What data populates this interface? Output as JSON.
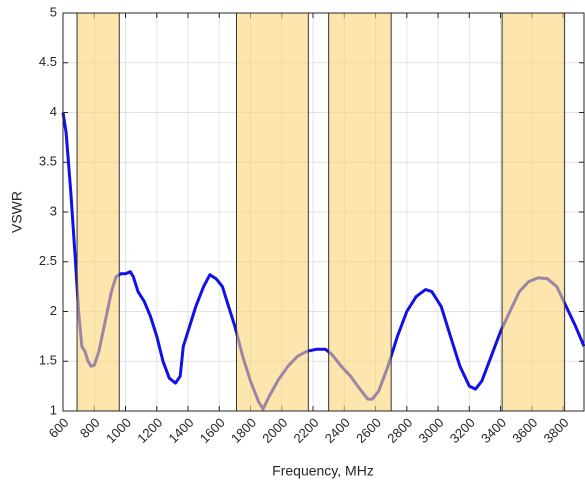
{
  "chart_data": {
    "type": "line",
    "xlabel": "Frequency, MHz",
    "ylabel": "VSWR",
    "x": [
      600,
      620,
      650,
      680,
      700,
      720,
      740,
      760,
      780,
      800,
      830,
      870,
      910,
      940,
      970,
      1000,
      1030,
      1050,
      1080,
      1120,
      1160,
      1200,
      1240,
      1280,
      1320,
      1350,
      1370,
      1400,
      1450,
      1500,
      1540,
      1580,
      1620,
      1660,
      1700,
      1750,
      1800,
      1850,
      1880,
      1920,
      1980,
      2040,
      2100,
      2160,
      2220,
      2280,
      2320,
      2380,
      2440,
      2500,
      2550,
      2580,
      2620,
      2680,
      2740,
      2800,
      2860,
      2920,
      2960,
      3020,
      3080,
      3140,
      3200,
      3240,
      3280,
      3340,
      3400,
      3460,
      3520,
      3580,
      3640,
      3700,
      3760,
      3820,
      3880,
      3934
    ],
    "series": [
      {
        "color": "#1010e8",
        "values": [
          4.0,
          3.8,
          3.2,
          2.5,
          2.0,
          1.65,
          1.6,
          1.5,
          1.45,
          1.46,
          1.6,
          1.9,
          2.2,
          2.35,
          2.38,
          2.38,
          2.4,
          2.35,
          2.2,
          2.1,
          1.95,
          1.75,
          1.5,
          1.33,
          1.28,
          1.35,
          1.65,
          1.8,
          2.05,
          2.25,
          2.37,
          2.33,
          2.25,
          2.05,
          1.85,
          1.55,
          1.3,
          1.1,
          1.02,
          1.15,
          1.32,
          1.45,
          1.55,
          1.6,
          1.62,
          1.62,
          1.57,
          1.45,
          1.35,
          1.22,
          1.12,
          1.12,
          1.2,
          1.45,
          1.75,
          2.0,
          2.15,
          2.22,
          2.2,
          2.05,
          1.75,
          1.45,
          1.25,
          1.22,
          1.3,
          1.55,
          1.8,
          2.0,
          2.2,
          2.3,
          2.34,
          2.33,
          2.25,
          2.05,
          1.85,
          1.65
        ]
      }
    ],
    "shaded_regions": [
      [
        690,
        960
      ],
      [
        1710,
        2170
      ],
      [
        2300,
        2700
      ],
      [
        3410,
        3810
      ]
    ],
    "shade_color": "#fcd478",
    "shade_opacity": 0.6,
    "xlim": [
      600,
      3934
    ],
    "xticks": [
      600,
      800,
      1000,
      1200,
      1400,
      1600,
      1800,
      2000,
      2200,
      2400,
      2600,
      2800,
      3000,
      3200,
      3400,
      3600,
      3800
    ],
    "ylim": [
      1,
      5
    ],
    "yticks": [
      1,
      1.5,
      2,
      2.5,
      3,
      3.5,
      4,
      4.5,
      5
    ],
    "grid": true
  }
}
